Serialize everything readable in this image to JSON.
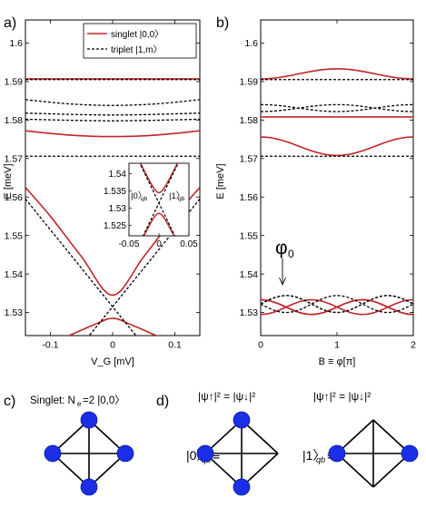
{
  "chart_data": [
    {
      "panel": "a)",
      "type": "line",
      "xlabel": "V_G [mV]",
      "ylabel": "E [meV]",
      "xlim": [
        -0.14,
        0.14
      ],
      "ylim": [
        1.524,
        1.606
      ],
      "xticks": [
        -0.1,
        0,
        0.1
      ],
      "xtick_labels": [
        "-0.1",
        "0",
        "0.1"
      ],
      "yticks": [
        1.53,
        1.54,
        1.55,
        1.56,
        1.57,
        1.58,
        1.59,
        1.6
      ],
      "ytick_labels": [
        "1.53",
        "1.54",
        "1.55",
        "1.56",
        "1.57",
        "1.58",
        "1.59",
        "1.6"
      ],
      "legend": {
        "position": "top-right",
        "entries": [
          {
            "name": "singlet |0,0〉",
            "color": "#c0262a",
            "style": "solid"
          },
          {
            "name": "triplet |1,m〉",
            "color": "#000000",
            "style": "dashed"
          }
        ]
      },
      "series": [
        {
          "name": "singlet |0,0〉",
          "kind": "flat",
          "points": [
            [
              -0.14,
              1.5907
            ],
            [
              0,
              1.5907
            ],
            [
              0.14,
              1.5907
            ]
          ]
        },
        {
          "name": "singlet |0,0〉",
          "kind": "curve",
          "points": [
            [
              -0.14,
              1.5772
            ],
            [
              -0.07,
              1.5761
            ],
            [
              0,
              1.5757
            ],
            [
              0.07,
              1.5761
            ],
            [
              0.14,
              1.5772
            ]
          ]
        },
        {
          "name": "singlet |0,0〉",
          "kind": "anticrossing-upper",
          "points": [
            [
              -0.14,
              1.5625
            ],
            [
              -0.1,
              1.555
            ],
            [
              -0.05,
              1.5445
            ],
            [
              0,
              1.5345
            ],
            [
              0.05,
              1.5445
            ],
            [
              0.1,
              1.555
            ],
            [
              0.14,
              1.5625
            ]
          ]
        },
        {
          "name": "singlet |0,0〉",
          "kind": "anticrossing-lower",
          "points": [
            [
              -0.07,
              1.524
            ],
            [
              -0.03,
              1.5268
            ],
            [
              0,
              1.5285
            ],
            [
              0.03,
              1.5268
            ],
            [
              0.07,
              1.524
            ]
          ]
        },
        {
          "name": "triplet |1,m〉",
          "kind": "flat",
          "points": [
            [
              -0.14,
              1.5905
            ],
            [
              0,
              1.5905
            ],
            [
              0.14,
              1.5905
            ]
          ]
        },
        {
          "name": "triplet |1,m〉",
          "kind": "curve",
          "points": [
            [
              -0.14,
              1.5853
            ],
            [
              -0.07,
              1.5842
            ],
            [
              0,
              1.5838
            ],
            [
              0.07,
              1.5842
            ],
            [
              0.14,
              1.5853
            ]
          ]
        },
        {
          "name": "triplet |1,m〉",
          "kind": "curve",
          "points": [
            [
              -0.14,
              1.5818
            ],
            [
              0,
              1.5813
            ],
            [
              0.14,
              1.5818
            ]
          ]
        },
        {
          "name": "triplet |1,m〉",
          "kind": "curve",
          "points": [
            [
              -0.14,
              1.5802
            ],
            [
              0,
              1.5798
            ],
            [
              0.14,
              1.5802
            ]
          ]
        },
        {
          "name": "triplet |1,m〉",
          "kind": "flat",
          "points": [
            [
              -0.14,
              1.5706
            ],
            [
              0,
              1.5706
            ],
            [
              0.14,
              1.5706
            ]
          ]
        },
        {
          "name": "triplet |1,m〉",
          "kind": "crossing",
          "points": [
            [
              -0.14,
              1.5595
            ],
            [
              0,
              1.5315
            ],
            [
              0.07,
              1.5175
            ]
          ]
        },
        {
          "name": "triplet |1,m〉",
          "kind": "crossing",
          "points": [
            [
              0.14,
              1.5595
            ],
            [
              0,
              1.5315
            ],
            [
              -0.07,
              1.5175
            ]
          ]
        }
      ],
      "inset": {
        "xlim": [
          -0.05,
          0.05
        ],
        "ylim": [
          1.522,
          1.543
        ],
        "xticks": [
          -0.05,
          0,
          0.05
        ],
        "xtick_labels": [
          "-0.05",
          "0",
          "0.05"
        ],
        "yticks": [
          1.525,
          1.53,
          1.535,
          1.54
        ],
        "ytick_labels": [
          "1.525",
          "1.53",
          "1.535",
          "1.54"
        ],
        "state_labels": [
          "|0〉",
          "qb",
          "|1〉",
          "qb"
        ]
      }
    },
    {
      "panel": "b)",
      "type": "line",
      "xlabel": "B ≡ φ[π]",
      "ylabel": "E [meV]",
      "xlim": [
        0,
        2
      ],
      "ylim": [
        1.524,
        1.606
      ],
      "xticks": [
        0,
        1,
        2
      ],
      "xtick_labels": [
        "0",
        "1",
        "2"
      ],
      "yticks": [
        1.53,
        1.54,
        1.55,
        1.56,
        1.57,
        1.58,
        1.59,
        1.6
      ],
      "ytick_labels": [
        "1.53",
        "1.54",
        "1.55",
        "1.56",
        "1.57",
        "1.58",
        "1.59",
        "1.6"
      ],
      "annotation": {
        "text": "φ",
        "subscript": "0",
        "arrow_to_x": 0.3
      },
      "series": [
        {
          "name": "singlet",
          "color": "#c0262a",
          "style": "solid",
          "base": 1.592,
          "amplitude": 0.0013,
          "harmonic": 2,
          "phase": 1
        },
        {
          "name": "singlet",
          "color": "#c0262a",
          "style": "solid",
          "base": 1.5808,
          "amplitude": 0,
          "harmonic": 2,
          "phase": 0
        },
        {
          "name": "singlet",
          "color": "#c0262a",
          "style": "solid",
          "base": 1.5732,
          "amplitude": 0.0024,
          "harmonic": 2,
          "phase": 0
        },
        {
          "name": "triplet",
          "color": "#000",
          "style": "dashed",
          "base": 1.5905,
          "amplitude": 0,
          "harmonic": 2,
          "phase": 0
        },
        {
          "name": "triplet",
          "color": "#000",
          "style": "dashed",
          "base": 1.5831,
          "amplitude": 0.0009,
          "harmonic": 2,
          "phase": 0
        },
        {
          "name": "triplet",
          "color": "#000",
          "style": "dashed",
          "base": 1.5831,
          "amplitude": 0.0009,
          "harmonic": 2,
          "phase": 1
        },
        {
          "name": "triplet",
          "color": "#000",
          "style": "dashed",
          "base": 1.5706,
          "amplitude": 0,
          "harmonic": 2,
          "phase": 0
        },
        {
          "name": "singlet",
          "color": "#c0262a",
          "style": "solid",
          "base": 1.5314,
          "amplitude": 0.0019,
          "harmonic": 3,
          "phase": 0
        },
        {
          "name": "singlet",
          "color": "#c0262a",
          "style": "solid",
          "base": 1.5314,
          "amplitude": 0.0019,
          "harmonic": 3,
          "phase": 0.667
        },
        {
          "name": "singlet",
          "color": "#c0262a",
          "style": "solid",
          "base": 1.5314,
          "amplitude": 0.0019,
          "harmonic": 3,
          "phase": 1.333
        },
        {
          "name": "triplet",
          "color": "#000",
          "style": "dashed",
          "base": 1.5322,
          "amplitude": 0.0022,
          "harmonic": 3,
          "phase": 0.333
        },
        {
          "name": "triplet",
          "color": "#000",
          "style": "dashed",
          "base": 1.5322,
          "amplitude": 0.0022,
          "harmonic": 3,
          "phase": 1
        },
        {
          "name": "triplet",
          "color": "#000",
          "style": "dashed",
          "base": 1.5322,
          "amplitude": 0.0022,
          "harmonic": 3,
          "phase": 1.667
        }
      ]
    }
  ],
  "diagrams": {
    "c": {
      "panel": "c)",
      "title": "Singlet: N",
      "title_sub": "e",
      "title_rest": "=2  |0,0〉"
    },
    "d": {
      "panel": "d)",
      "left_eq": "|ψ↑|² = |ψ↓|²",
      "right_eq": "|ψ↑|² = |ψ↓|²",
      "left_state": "|0〉",
      "left_sub": "qb",
      "right_state": "|1〉",
      "right_sub": "qb",
      "equiv": "≡"
    },
    "node_color": "#1a2fe6"
  }
}
